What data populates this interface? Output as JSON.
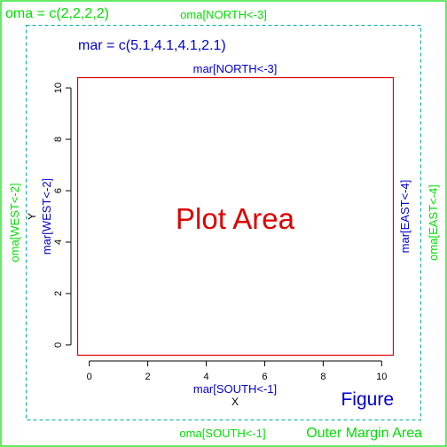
{
  "colors": {
    "outer": "#00dd00",
    "margin": "#0000cc",
    "plot": "#dd0000",
    "axis": "#000000"
  },
  "outer_margin": {
    "label": "Outer Margin Area",
    "oma_text": "oma = c(2,2,2,2)",
    "north": "oma[NORTH<-3]",
    "south": "oma[SOUTH<-1]",
    "west": "oma[WEST<-2]",
    "east": "oma[EAST<-4]"
  },
  "figure": {
    "label": "Figure",
    "mar_text": "mar = c(5.1,4.1,4.1,2.1)",
    "north": "mar[NORTH<-3]",
    "south": "mar[SOUTH<-1]",
    "west": "mar[WEST<-2]",
    "east": "mar[EAST<-4]"
  },
  "plot": {
    "label": "Plot Area"
  },
  "chart_data": {
    "type": "scatter",
    "xlabel": "X",
    "ylabel": "Y",
    "xlim": [
      -0.4,
      10.4
    ],
    "ylim": [
      -0.4,
      10.4
    ],
    "x_ticks": [
      "0",
      "2",
      "4",
      "6",
      "8",
      "10"
    ],
    "y_ticks": [
      "0",
      "2",
      "4",
      "6",
      "8",
      "10"
    ],
    "x_tick_values": [
      0,
      2,
      4,
      6,
      8,
      10
    ],
    "y_tick_values": [
      0,
      2,
      4,
      6,
      8,
      10
    ],
    "grid": false
  }
}
